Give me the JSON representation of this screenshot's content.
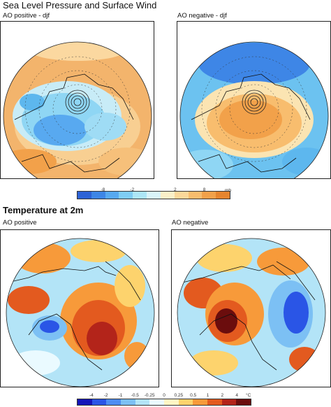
{
  "top_section": {
    "title": "Sea Level Pressure and Surface Wind",
    "left_label": "AO positive - djf",
    "right_label": "AO negative - djf"
  },
  "slp_colorbar": {
    "ticks": [
      "-8",
      "-2",
      "2",
      "8"
    ],
    "unit": "mb",
    "colors": [
      "#2e63d6",
      "#3e86e6",
      "#58a9f0",
      "#7fcdf4",
      "#ade6f7",
      "#d9f4fa",
      "#fbf0c8",
      "#fbd89a",
      "#f8bd6e",
      "#f2a14a",
      "#e6852f"
    ]
  },
  "bottom_section": {
    "title": "Temperature at 2m",
    "left_label": "AO positive",
    "right_label": "AO negative"
  },
  "temp_colorbar": {
    "ticks": [
      "-4",
      "-2",
      "-1",
      "-0.5",
      "-0.25",
      "0",
      "0.25",
      "0.5",
      "1",
      "2",
      "4"
    ],
    "unit": "°C",
    "colors": [
      "#1515b8",
      "#2a55e6",
      "#4d8df2",
      "#7cc0f4",
      "#b3e4f7",
      "#eafaff",
      "#fff6c4",
      "#fdd36d",
      "#f79a3a",
      "#e35a1f",
      "#b3241a",
      "#6b0d0d"
    ]
  }
}
